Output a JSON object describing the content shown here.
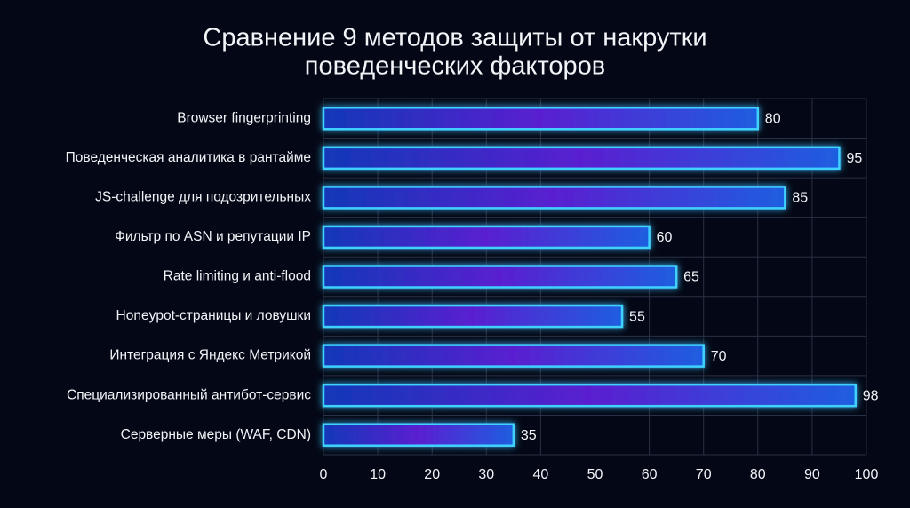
{
  "chart_data": {
    "type": "bar",
    "orientation": "horizontal",
    "title": [
      "Сравнение 9 методов защиты от накрутки",
      "поведенческих факторов"
    ],
    "categories": [
      "Browser fingerprinting",
      "Поведенческая аналитика в рантайме",
      "JS-challenge для подозрительных",
      "Фильтр по ASN и репутации IP",
      "Rate limiting и anti-flood",
      "Honeypot-страницы и ловушки",
      "Интеграция с Яндекс Метрикой",
      "Специализированный антибот-сервис",
      "Серверные меры (WAF, CDN)"
    ],
    "values": [
      80,
      95,
      85,
      60,
      65,
      55,
      70,
      98,
      35
    ],
    "color": "#3fd2ff",
    "xlim": [
      0,
      100
    ],
    "xticks": [
      0,
      10,
      20,
      30,
      40,
      50,
      60,
      70,
      80,
      90,
      100
    ],
    "grid": true
  }
}
